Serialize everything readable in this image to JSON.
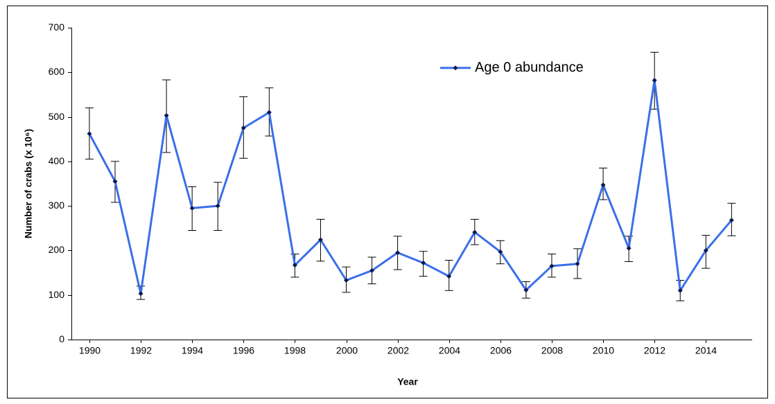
{
  "chart_data": {
    "type": "line",
    "x_label": "Year",
    "y_label": "Number of crabs (x 10⁶)",
    "x": [
      1990,
      1991,
      1992,
      1993,
      1994,
      1995,
      1996,
      1997,
      1998,
      1999,
      2000,
      2001,
      2002,
      2003,
      2004,
      2005,
      2006,
      2007,
      2008,
      2009,
      2010,
      2011,
      2012,
      2013,
      2014,
      2015
    ],
    "series": [
      {
        "name": "Age 0 abundance",
        "color": "#3a6fe8",
        "marker_color": "#0a1a50",
        "values": [
          462,
          355,
          103,
          503,
          295,
          300,
          475,
          510,
          167,
          224,
          133,
          155,
          195,
          172,
          142,
          241,
          197,
          111,
          165,
          170,
          347,
          205,
          582,
          110,
          200,
          268
        ],
        "lower": [
          405,
          308,
          90,
          420,
          245,
          245,
          407,
          457,
          140,
          176,
          106,
          125,
          157,
          142,
          110,
          213,
          170,
          93,
          140,
          137,
          314,
          175,
          517,
          87,
          160,
          233
        ],
        "upper": [
          520,
          400,
          120,
          583,
          343,
          353,
          545,
          565,
          192,
          270,
          163,
          185,
          232,
          198,
          178,
          270,
          222,
          130,
          192,
          204,
          385,
          232,
          645,
          133,
          234,
          306
        ]
      }
    ],
    "xlim": [
      1989.3,
      2015.8
    ],
    "xticks": [
      1990,
      1992,
      1994,
      1996,
      1998,
      2000,
      2002,
      2004,
      2006,
      2008,
      2010,
      2012,
      2014
    ],
    "ylim": [
      0,
      700
    ],
    "yticks": [
      0,
      100,
      200,
      300,
      400,
      500,
      600,
      700
    ],
    "legend": "top-right"
  }
}
